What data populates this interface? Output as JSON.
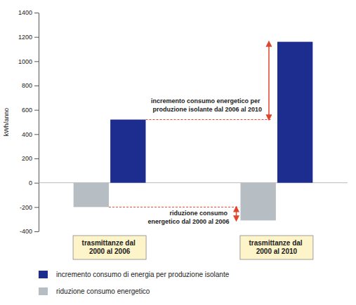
{
  "chart_data": {
    "type": "bar",
    "y_label": "kWh/anno",
    "categories": [
      "trasmittanze dal 2000 al 2006",
      "trasmittanze dal 2000 al 2010"
    ],
    "series": [
      {
        "name": "incremento consumo di energia per produzione isolante",
        "color": "#1c2d8f",
        "values": [
          520,
          1160
        ]
      },
      {
        "name": "riduzione consumo energetico",
        "color": "#b6bdc3",
        "values": [
          -200,
          -310
        ]
      }
    ],
    "annotations": [
      {
        "text": "incremento consumo energetico per produzione isolante dal 2006 al 2010"
      },
      {
        "text": "riduzione consumo energetico dal 2000 al 2006"
      }
    ],
    "ylim": [
      -400,
      1400
    ],
    "yticks": [
      -400,
      -200,
      0,
      200,
      400,
      600,
      800,
      1000,
      1200,
      1400
    ],
    "grid": false,
    "legend": "bottom"
  }
}
